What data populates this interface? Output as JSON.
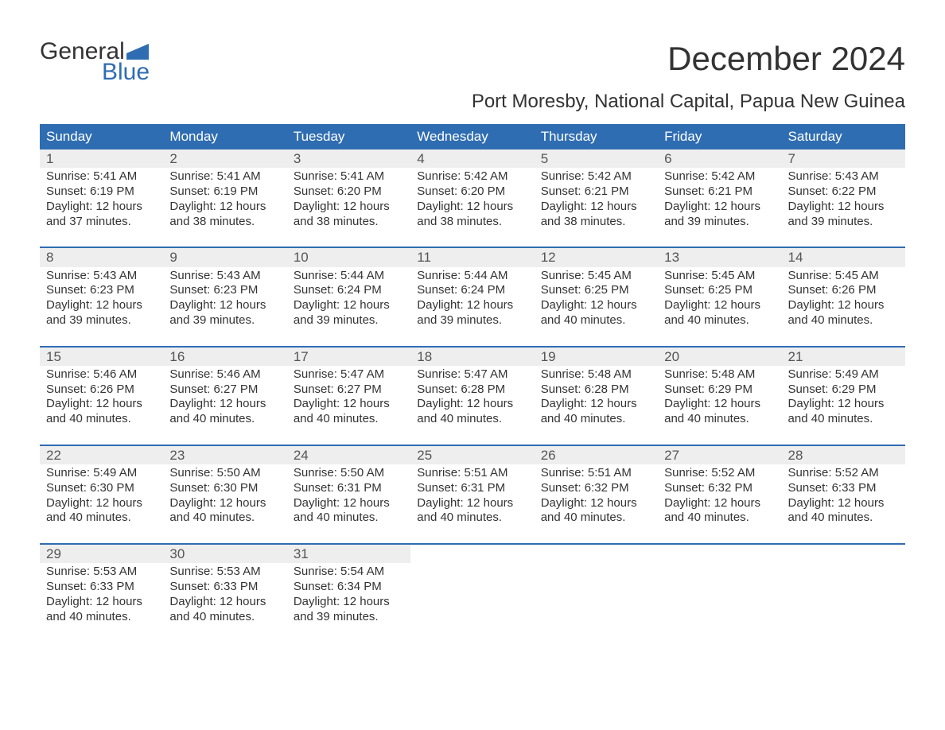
{
  "logo": {
    "word1": "General",
    "word2": "Blue",
    "accent_color": "#2f6db2"
  },
  "title": "December 2024",
  "location": "Port Moresby, National Capital, Papua New Guinea",
  "colors": {
    "header_bg": "#2f6db2",
    "header_text": "#ffffff",
    "daynum_bg": "#eeeeee",
    "text": "#333333",
    "background": "#ffffff",
    "week_border": "#2f6db2"
  },
  "fonts": {
    "title_size": 42,
    "location_size": 24,
    "header_size": 17,
    "cell_size": 15
  },
  "labels": {
    "sunrise": "Sunrise:",
    "sunset": "Sunset:",
    "daylight": "Daylight:"
  },
  "day_names": [
    "Sunday",
    "Monday",
    "Tuesday",
    "Wednesday",
    "Thursday",
    "Friday",
    "Saturday"
  ],
  "weeks": [
    [
      {
        "day": 1,
        "sunrise": "5:41 AM",
        "sunset": "6:19 PM",
        "daylight": "12 hours and 37 minutes."
      },
      {
        "day": 2,
        "sunrise": "5:41 AM",
        "sunset": "6:19 PM",
        "daylight": "12 hours and 38 minutes."
      },
      {
        "day": 3,
        "sunrise": "5:41 AM",
        "sunset": "6:20 PM",
        "daylight": "12 hours and 38 minutes."
      },
      {
        "day": 4,
        "sunrise": "5:42 AM",
        "sunset": "6:20 PM",
        "daylight": "12 hours and 38 minutes."
      },
      {
        "day": 5,
        "sunrise": "5:42 AM",
        "sunset": "6:21 PM",
        "daylight": "12 hours and 38 minutes."
      },
      {
        "day": 6,
        "sunrise": "5:42 AM",
        "sunset": "6:21 PM",
        "daylight": "12 hours and 39 minutes."
      },
      {
        "day": 7,
        "sunrise": "5:43 AM",
        "sunset": "6:22 PM",
        "daylight": "12 hours and 39 minutes."
      }
    ],
    [
      {
        "day": 8,
        "sunrise": "5:43 AM",
        "sunset": "6:23 PM",
        "daylight": "12 hours and 39 minutes."
      },
      {
        "day": 9,
        "sunrise": "5:43 AM",
        "sunset": "6:23 PM",
        "daylight": "12 hours and 39 minutes."
      },
      {
        "day": 10,
        "sunrise": "5:44 AM",
        "sunset": "6:24 PM",
        "daylight": "12 hours and 39 minutes."
      },
      {
        "day": 11,
        "sunrise": "5:44 AM",
        "sunset": "6:24 PM",
        "daylight": "12 hours and 39 minutes."
      },
      {
        "day": 12,
        "sunrise": "5:45 AM",
        "sunset": "6:25 PM",
        "daylight": "12 hours and 40 minutes."
      },
      {
        "day": 13,
        "sunrise": "5:45 AM",
        "sunset": "6:25 PM",
        "daylight": "12 hours and 40 minutes."
      },
      {
        "day": 14,
        "sunrise": "5:45 AM",
        "sunset": "6:26 PM",
        "daylight": "12 hours and 40 minutes."
      }
    ],
    [
      {
        "day": 15,
        "sunrise": "5:46 AM",
        "sunset": "6:26 PM",
        "daylight": "12 hours and 40 minutes."
      },
      {
        "day": 16,
        "sunrise": "5:46 AM",
        "sunset": "6:27 PM",
        "daylight": "12 hours and 40 minutes."
      },
      {
        "day": 17,
        "sunrise": "5:47 AM",
        "sunset": "6:27 PM",
        "daylight": "12 hours and 40 minutes."
      },
      {
        "day": 18,
        "sunrise": "5:47 AM",
        "sunset": "6:28 PM",
        "daylight": "12 hours and 40 minutes."
      },
      {
        "day": 19,
        "sunrise": "5:48 AM",
        "sunset": "6:28 PM",
        "daylight": "12 hours and 40 minutes."
      },
      {
        "day": 20,
        "sunrise": "5:48 AM",
        "sunset": "6:29 PM",
        "daylight": "12 hours and 40 minutes."
      },
      {
        "day": 21,
        "sunrise": "5:49 AM",
        "sunset": "6:29 PM",
        "daylight": "12 hours and 40 minutes."
      }
    ],
    [
      {
        "day": 22,
        "sunrise": "5:49 AM",
        "sunset": "6:30 PM",
        "daylight": "12 hours and 40 minutes."
      },
      {
        "day": 23,
        "sunrise": "5:50 AM",
        "sunset": "6:30 PM",
        "daylight": "12 hours and 40 minutes."
      },
      {
        "day": 24,
        "sunrise": "5:50 AM",
        "sunset": "6:31 PM",
        "daylight": "12 hours and 40 minutes."
      },
      {
        "day": 25,
        "sunrise": "5:51 AM",
        "sunset": "6:31 PM",
        "daylight": "12 hours and 40 minutes."
      },
      {
        "day": 26,
        "sunrise": "5:51 AM",
        "sunset": "6:32 PM",
        "daylight": "12 hours and 40 minutes."
      },
      {
        "day": 27,
        "sunrise": "5:52 AM",
        "sunset": "6:32 PM",
        "daylight": "12 hours and 40 minutes."
      },
      {
        "day": 28,
        "sunrise": "5:52 AM",
        "sunset": "6:33 PM",
        "daylight": "12 hours and 40 minutes."
      }
    ],
    [
      {
        "day": 29,
        "sunrise": "5:53 AM",
        "sunset": "6:33 PM",
        "daylight": "12 hours and 40 minutes."
      },
      {
        "day": 30,
        "sunrise": "5:53 AM",
        "sunset": "6:33 PM",
        "daylight": "12 hours and 40 minutes."
      },
      {
        "day": 31,
        "sunrise": "5:54 AM",
        "sunset": "6:34 PM",
        "daylight": "12 hours and 39 minutes."
      },
      null,
      null,
      null,
      null
    ]
  ]
}
